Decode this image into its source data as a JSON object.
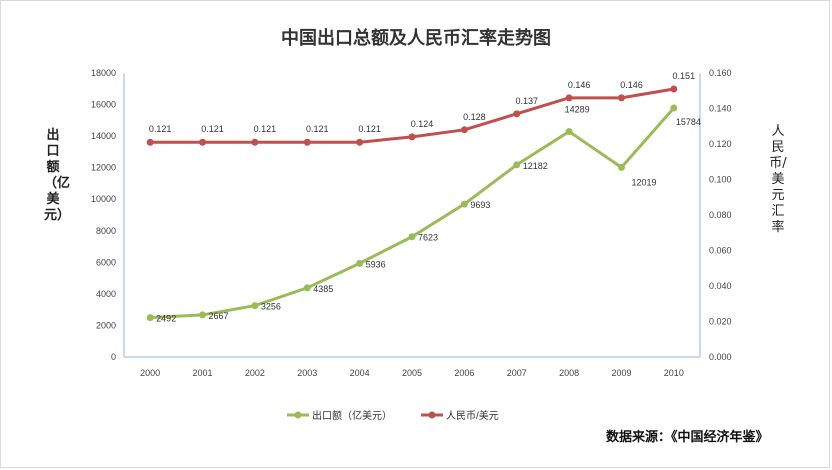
{
  "chart_data": {
    "type": "line",
    "title": "中国出口总额及人民币汇率走势图",
    "xlabel": "",
    "ylabel": "出口额（亿美元）",
    "ylabel_right": "人民币/美元汇率",
    "categories": [
      "2000",
      "2001",
      "2002",
      "2003",
      "2004",
      "2005",
      "2006",
      "2007",
      "2008",
      "2009",
      "2010"
    ],
    "ylim": [
      0,
      18000
    ],
    "yticks": [
      0,
      2000,
      4000,
      6000,
      8000,
      10000,
      12000,
      14000,
      16000,
      18000
    ],
    "ylim_right": [
      0,
      0.16
    ],
    "yticks_right": [
      "0.000",
      "0.020",
      "0.040",
      "0.060",
      "0.080",
      "0.100",
      "0.120",
      "0.140",
      "0.160"
    ],
    "series": [
      {
        "name": "出口额（亿美元）",
        "axis": "left",
        "color": "#9bbb59",
        "values": [
          2492,
          2667,
          3256,
          4385,
          5936,
          7623,
          9693,
          12182,
          14289,
          12019,
          15784
        ]
      },
      {
        "name": "人民币/美元",
        "axis": "right",
        "color": "#c0504d",
        "values": [
          0.121,
          0.121,
          0.121,
          0.121,
          0.121,
          0.124,
          0.128,
          0.137,
          0.146,
          0.146,
          0.151
        ]
      }
    ],
    "grid": false,
    "legend_position": "bottom",
    "source": "数据来源：《中国经济年鉴》"
  }
}
